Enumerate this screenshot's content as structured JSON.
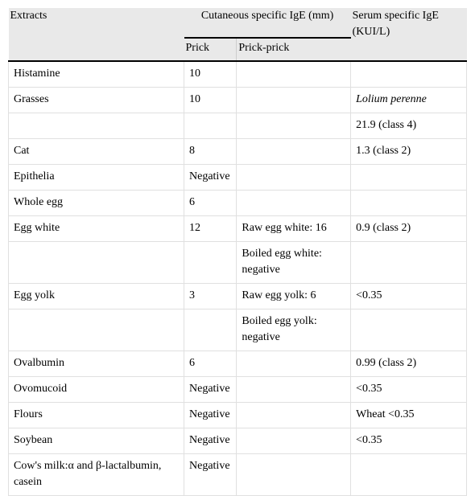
{
  "table": {
    "header": {
      "extracts": "Extracts",
      "cutaneous": "Cutaneous specific IgE (mm)",
      "prick": "Prick",
      "prick_prick": "Prick-prick",
      "serum": "Serum specific IgE (KUI/L)"
    },
    "rows": [
      [
        "Histamine",
        "10",
        null,
        null
      ],
      [
        "Grasses",
        "10",
        null,
        "Lolium perenne"
      ],
      [
        null,
        null,
        null,
        "21.9 (class 4)"
      ],
      [
        "Cat",
        "8",
        null,
        "1.3 (class 2)"
      ],
      [
        "Epithelia",
        "Negative",
        null,
        null
      ],
      [
        "Whole egg",
        "6",
        null,
        null
      ],
      [
        "Egg white",
        "12",
        "Raw egg white: 16",
        "0.9 (class 2)"
      ],
      [
        null,
        null,
        "Boiled egg white: negative",
        null
      ],
      [
        "Egg yolk",
        "3",
        "Raw egg yolk: 6",
        "<0.35"
      ],
      [
        null,
        null,
        "Boiled egg yolk: negative",
        null
      ],
      [
        "Ovalbumin",
        "6",
        null,
        "0.99 (class 2)"
      ],
      [
        "Ovomucoid",
        "Negative",
        null,
        "<0.35"
      ],
      [
        "Flours",
        "Negative",
        null,
        "Wheat <0.35"
      ],
      [
        "Soybean",
        "Negative",
        null,
        "<0.35"
      ],
      [
        "Cow's milk:α and β-lactalbumin, casein",
        "Negative",
        null,
        null
      ]
    ]
  }
}
